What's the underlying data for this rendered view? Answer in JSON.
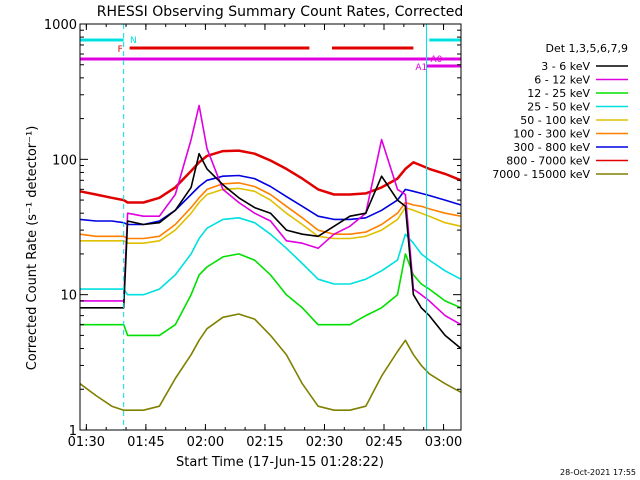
{
  "chart_data": {
    "type": "line",
    "title": "RHESSI Observing Summary Count Rates, Corrected",
    "xlabel": "Start Time (17-Jun-15 01:28:22)",
    "ylabel": "Corrected Count Rate (s⁻¹ detector⁻¹)",
    "yscale": "log",
    "ylim": [
      1,
      1000
    ],
    "xlim_minutes_after_start": [
      0,
      96
    ],
    "x_ticks": [
      {
        "label": "01:30",
        "min": 1.6
      },
      {
        "label": "01:45",
        "min": 16.6
      },
      {
        "label": "02:00",
        "min": 31.6
      },
      {
        "label": "02:15",
        "min": 46.6
      },
      {
        "label": "02:30",
        "min": 61.6
      },
      {
        "label": "02:45",
        "min": 76.6
      },
      {
        "label": "03:00",
        "min": 91.6
      }
    ],
    "y_ticks": [
      {
        "label": "1",
        "value": 1
      },
      {
        "label": "10",
        "value": 10
      },
      {
        "label": "100",
        "value": 100
      },
      {
        "label": "1000",
        "value": 1000
      }
    ],
    "legend_title": "Det 1,3,5,6,7,9",
    "legend_position": "right",
    "x": [
      0,
      4,
      8,
      11,
      12,
      16,
      20,
      24,
      28,
      30,
      32,
      36,
      40,
      44,
      48,
      52,
      56,
      60,
      64,
      68,
      72,
      76,
      80,
      82,
      84,
      86,
      88,
      92,
      96
    ],
    "series": [
      {
        "name": "3 - 6 keV",
        "color": "#000000",
        "values": [
          8,
          8,
          8,
          8,
          35,
          33,
          34,
          42,
          62,
          110,
          85,
          65,
          52,
          44,
          40,
          30,
          28,
          27,
          32,
          38,
          40,
          75,
          50,
          45,
          10,
          8,
          7,
          5,
          4
        ]
      },
      {
        "name": "6 - 12 keV",
        "color": "#e000e0",
        "values": [
          9,
          9,
          9,
          9,
          40,
          38,
          38,
          55,
          140,
          250,
          120,
          60,
          48,
          40,
          35,
          25,
          24,
          22,
          28,
          32,
          40,
          140,
          60,
          55,
          11,
          10,
          9,
          7,
          6
        ]
      },
      {
        "name": "12 - 25 keV",
        "color": "#00e000",
        "values": [
          6,
          6,
          6,
          6,
          5,
          5,
          5,
          6,
          10,
          14,
          16,
          19,
          20,
          18,
          14,
          10,
          8,
          6,
          6,
          6,
          7,
          8,
          10,
          20,
          14,
          12,
          11,
          9,
          8
        ]
      },
      {
        "name": "25 - 50 keV",
        "color": "#00e0e0",
        "values": [
          11,
          11,
          11,
          11,
          10,
          10,
          11,
          14,
          20,
          26,
          31,
          36,
          37,
          34,
          28,
          22,
          17,
          13,
          12,
          12,
          13,
          15,
          18,
          28,
          24,
          20,
          18,
          15,
          13
        ]
      },
      {
        "name": "50 - 100 keV",
        "color": "#e0c000",
        "values": [
          25,
          25,
          25,
          25,
          24,
          24,
          25,
          30,
          40,
          48,
          55,
          60,
          61,
          58,
          50,
          40,
          33,
          27,
          26,
          26,
          27,
          30,
          36,
          44,
          42,
          40,
          38,
          34,
          32
        ]
      },
      {
        "name": "100 - 300 keV",
        "color": "#ff8000",
        "values": [
          28,
          27,
          27,
          27,
          26,
          26,
          27,
          33,
          44,
          52,
          60,
          66,
          67,
          63,
          55,
          45,
          37,
          30,
          28,
          28,
          29,
          33,
          40,
          48,
          46,
          45,
          43,
          40,
          38
        ]
      },
      {
        "name": "300 - 800 keV",
        "color": "#0000e0",
        "values": [
          36,
          35,
          35,
          34,
          33,
          33,
          35,
          42,
          55,
          63,
          70,
          75,
          76,
          72,
          63,
          53,
          45,
          38,
          36,
          36,
          37,
          42,
          50,
          60,
          58,
          56,
          54,
          50,
          46
        ]
      },
      {
        "name": "800 - 7000 keV",
        "color": "#e00000",
        "values": [
          58,
          55,
          52,
          50,
          48,
          48,
          52,
          62,
          82,
          95,
          106,
          115,
          116,
          110,
          98,
          85,
          72,
          60,
          55,
          55,
          56,
          62,
          72,
          85,
          95,
          90,
          85,
          78,
          70
        ]
      },
      {
        "name": "7000 - 15000 keV",
        "color": "#808000",
        "values": [
          2.2,
          1.8,
          1.5,
          1.4,
          1.4,
          1.4,
          1.5,
          2.4,
          3.6,
          4.6,
          5.6,
          6.8,
          7.2,
          6.6,
          5.0,
          3.6,
          2.2,
          1.5,
          1.4,
          1.4,
          1.5,
          2.5,
          3.8,
          4.6,
          3.6,
          3.0,
          2.6,
          2.2,
          1.9
        ]
      }
    ],
    "flag_bars": [
      {
        "label": "N",
        "color": "#00e0e0",
        "segments": [
          [
            0,
            11
          ]
        ]
      },
      {
        "label": "",
        "color": "#00e0e0",
        "segments": [
          [
            88,
            96
          ]
        ]
      },
      {
        "label": "F",
        "color": "#e00000",
        "segments": [
          [
            12.5,
            57.8
          ],
          [
            63.5,
            84
          ]
        ]
      },
      {
        "label": "A1",
        "color": "#e000e0",
        "segments": [
          [
            0,
            96
          ]
        ]
      },
      {
        "label": "A0",
        "color": "#e000e0",
        "segments": [
          [
            87.3,
            96
          ]
        ]
      }
    ],
    "flag_label_A1": "A1",
    "flag_label_A0": "A0",
    "vertical_lines_minutes": [
      11,
      87.3,
      96
    ]
  },
  "footer": {
    "timestamp": "28-Oct-2021 17:55"
  }
}
